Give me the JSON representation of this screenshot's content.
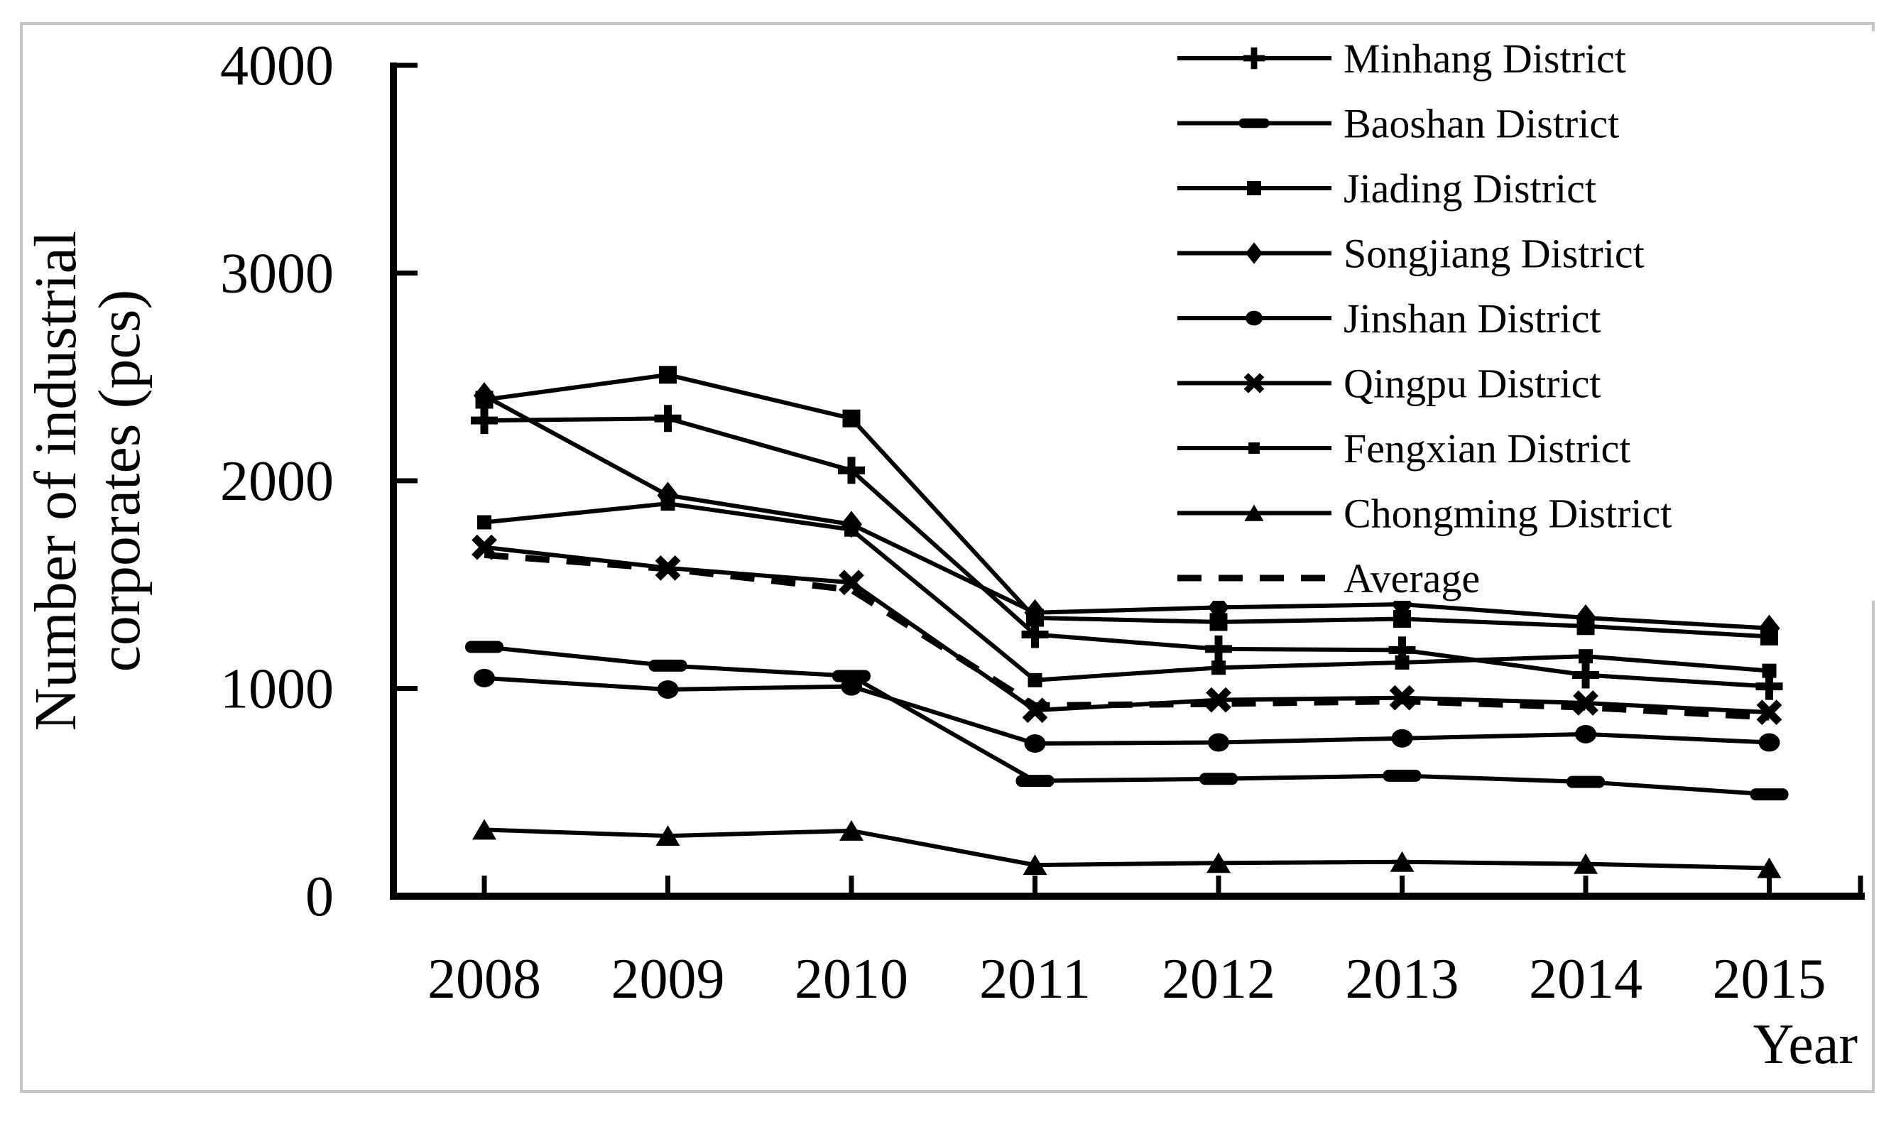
{
  "chart_data": {
    "type": "line",
    "title": "",
    "ylabel": "Number of industrial corporates (pcs)",
    "ylabel_lines": [
      "Number of industrial",
      "corporates (pcs)"
    ],
    "xlabel": "Year",
    "categories": [
      "2008",
      "2009",
      "2010",
      "2011",
      "2012",
      "2013",
      "2014",
      "2015"
    ],
    "ylim": [
      0,
      4000
    ],
    "yticks": [
      0,
      1000,
      2000,
      3000,
      4000
    ],
    "grid": false,
    "legend_position": "top-right-inside",
    "line_color": "#000000",
    "frame_color": "#c6c6c6",
    "background": "#ffffff",
    "series": [
      {
        "name": "Minhang District",
        "marker": "plus",
        "dashed": false,
        "values": [
          2290,
          2300,
          2050,
          1260,
          1190,
          1185,
          1065,
          1010
        ]
      },
      {
        "name": "Baoshan District",
        "marker": "wide-dash",
        "dashed": false,
        "values": [
          1200,
          1110,
          1060,
          555,
          565,
          580,
          550,
          490
        ]
      },
      {
        "name": "Jiading District",
        "marker": "square",
        "dashed": false,
        "values": [
          2390,
          2510,
          2300,
          1340,
          1320,
          1335,
          1300,
          1250
        ]
      },
      {
        "name": "Songjiang District",
        "marker": "diamond",
        "dashed": false,
        "values": [
          2410,
          1930,
          1790,
          1365,
          1390,
          1405,
          1340,
          1290
        ]
      },
      {
        "name": "Jinshan District",
        "marker": "circle",
        "dashed": false,
        "values": [
          1050,
          995,
          1010,
          735,
          740,
          760,
          780,
          740
        ]
      },
      {
        "name": "Qingpu District",
        "marker": "x",
        "dashed": false,
        "values": [
          1680,
          1580,
          1510,
          895,
          945,
          955,
          930,
          885
        ]
      },
      {
        "name": "Fengxian District",
        "marker": "small-square",
        "dashed": false,
        "values": [
          1800,
          1890,
          1765,
          1040,
          1100,
          1125,
          1155,
          1085
        ]
      },
      {
        "name": "Chongming District",
        "marker": "triangle",
        "dashed": false,
        "values": [
          320,
          290,
          315,
          150,
          160,
          165,
          155,
          135
        ]
      },
      {
        "name": "Average",
        "marker": "none",
        "dashed": true,
        "values": [
          1643,
          1576,
          1475,
          918,
          926,
          939,
          909,
          861
        ]
      }
    ]
  }
}
